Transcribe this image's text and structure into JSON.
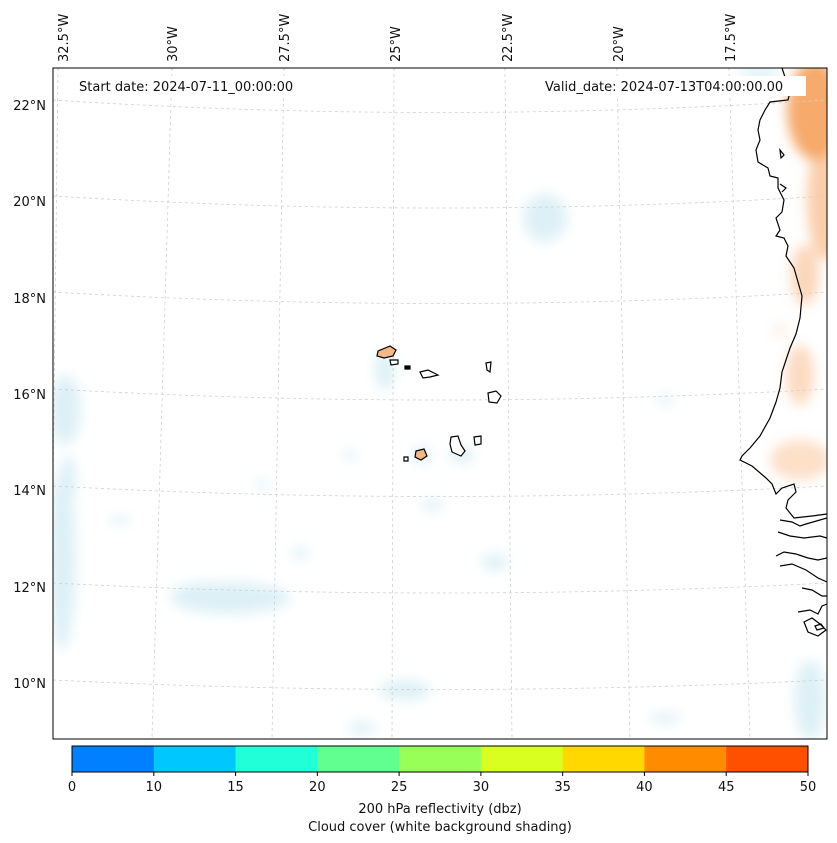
{
  "header": {
    "start_label": "Start date: 2024-07-11_00:00:00",
    "valid_label": "Valid_date: 2024-07-13T04:00:00.00"
  },
  "longitude_labels": [
    "32.5°W",
    "30°W",
    "27.5°W",
    "25°W",
    "22.5°W",
    "20°W",
    "17.5°W"
  ],
  "latitude_labels": [
    "22°N",
    "20°N",
    "18°N",
    "16°N",
    "14°N",
    "12°N",
    "10°N"
  ],
  "colorbar": {
    "ticks": [
      "0",
      "10",
      "15",
      "20",
      "25",
      "30",
      "35",
      "40",
      "45",
      "50"
    ],
    "colors": [
      "#0080ff",
      "#00c8ff",
      "#20ffd8",
      "#60ff90",
      "#98ff58",
      "#d8ff20",
      "#ffd800",
      "#ff8c00",
      "#ff5000"
    ],
    "title": "200 hPa reflectivity (dbz)",
    "subtitle": "Cloud cover (white background shading)"
  },
  "map": {
    "gridline_color": "#d0d0d0",
    "land_outline_color": "#000000",
    "island_fill_color": "#f4b884",
    "cloud_shading_color": "#d8eef5",
    "reflectivity_shading_color": "#f6a564"
  }
}
